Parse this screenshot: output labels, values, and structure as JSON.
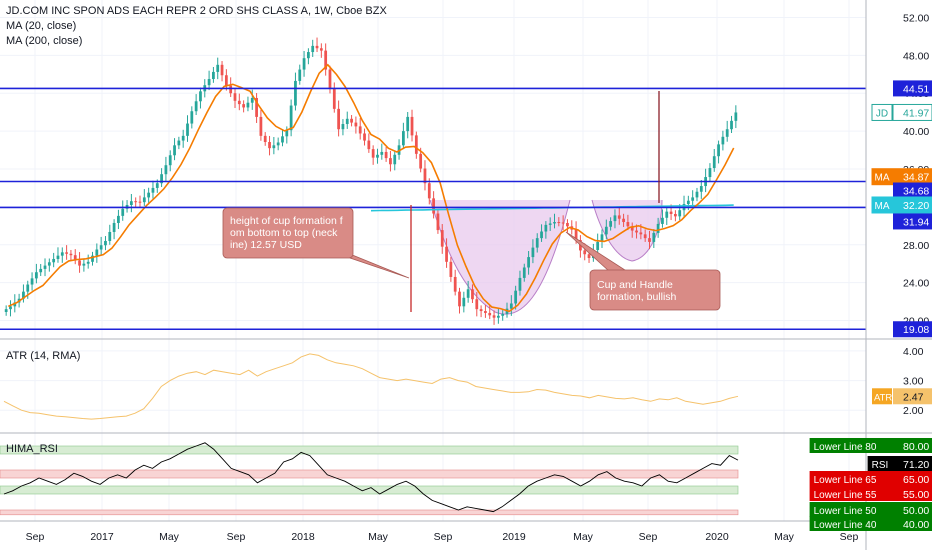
{
  "chart_data": {
    "type": "candlestick",
    "title": "JD.COM INC SPON ADS EACH REPR 2 ORD SHS CLASS A, 1W, Cboe BZX",
    "indicators": [
      "MA (20, close)",
      "MA (200, close)"
    ],
    "x_labels": [
      "Sep",
      "2017",
      "May",
      "Sep",
      "2018",
      "May",
      "Sep",
      "2019",
      "May",
      "Sep",
      "2020",
      "May",
      "Sep"
    ],
    "price_axis": {
      "ticks": [
        "52.00",
        "48.00",
        "44.00",
        "40.00",
        "36.00",
        "32.00",
        "28.00",
        "24.00",
        "20.00"
      ],
      "range": [
        19,
        53
      ]
    },
    "horizontal_levels": [
      44.51,
      34.68,
      31.94,
      19.08
    ],
    "price_badges": [
      {
        "label": "44.51",
        "color": "#1e22d9"
      },
      {
        "label": "JD",
        "value": "41.97",
        "color": "#26a69a",
        "style": "outline"
      },
      {
        "label": "MA",
        "value": "34.87",
        "color": "#f57c00"
      },
      {
        "label": "34.68",
        "color": "#1e22d9"
      },
      {
        "label": "MA",
        "value": "32.20",
        "color": "#26c6da"
      },
      {
        "label": "31.94",
        "color": "#1e22d9"
      },
      {
        "label": "19.08",
        "color": "#1e22d9"
      }
    ],
    "annotations": [
      {
        "text": "height of cup formation from bottom to top (neckline) 12.57 USD"
      },
      {
        "text": "Cup and Handle formation, bullish"
      }
    ],
    "price_closes": [
      21.5,
      22.3,
      23.8,
      25.1,
      25.8,
      26.5,
      27.2,
      26.9,
      25.8,
      26.2,
      27.5,
      28.4,
      30.3,
      31.8,
      32.6,
      32.5,
      33.5,
      34.5,
      36.4,
      38.5,
      39.5,
      42.1,
      44.2,
      45.5,
      47.0,
      44.8,
      43.2,
      42.5,
      43.5,
      39.5,
      38.2,
      38.8,
      40.1,
      45.3,
      47.7,
      49.0,
      48.5,
      44.5,
      40.2,
      41.3,
      40.5,
      39.0,
      37.2,
      37.8,
      36.5,
      38.5,
      41.5,
      37.6,
      34.5,
      31.3,
      27.8,
      24.6,
      21.5,
      23.3,
      21.2,
      20.8,
      20.3,
      20.7,
      21.8,
      24.5,
      26.7,
      28.7,
      30.1,
      30.4,
      30.3,
      29.6,
      27.4,
      26.6,
      28.3,
      29.9,
      31.1,
      30.4,
      29.5,
      29.1,
      28.3,
      30.2,
      31.5,
      31.0,
      32.3,
      33.0,
      34.2,
      36.1,
      38.6,
      40.2,
      41.97
    ],
    "ma20_series_name": "MA (20, close)",
    "ma20_last": 34.87,
    "ma200_series_name": "MA (200, close)",
    "ma200_last": 32.2,
    "atr": {
      "label": "ATR (14, RMA)",
      "ticks": [
        "4.00",
        "3.00",
        "2.00"
      ],
      "range": [
        1.4,
        4.2
      ],
      "last": 2.47,
      "values": [
        2.3,
        2.15,
        2.0,
        1.92,
        1.9,
        1.85,
        1.8,
        1.78,
        1.75,
        1.72,
        1.7,
        1.72,
        1.75,
        1.78,
        1.8,
        1.9,
        2.05,
        2.4,
        2.8,
        3.0,
        3.15,
        3.25,
        3.3,
        3.2,
        3.35,
        3.3,
        3.25,
        3.2,
        3.35,
        3.15,
        3.3,
        3.4,
        3.5,
        3.6,
        3.8,
        3.9,
        3.85,
        3.7,
        3.6,
        3.55,
        3.5,
        3.4,
        3.25,
        3.1,
        3.05,
        3.0,
        3.05,
        3.0,
        2.95,
        2.9,
        3.05,
        3.1,
        3.0,
        2.95,
        2.8,
        2.75,
        2.7,
        2.65,
        2.6,
        2.6,
        2.62,
        2.7,
        2.68,
        2.6,
        2.55,
        2.5,
        2.48,
        2.42,
        2.5,
        2.45,
        2.4,
        2.38,
        2.42,
        2.35,
        2.3,
        2.38,
        2.35,
        2.42,
        2.3,
        2.25,
        2.2,
        2.25,
        2.3,
        2.4,
        2.47
      ]
    },
    "rsi": {
      "label": "HIMA_RSI",
      "last": 71.2,
      "range": [
        35,
        85
      ],
      "values": [
        50,
        52,
        55,
        57,
        60,
        58,
        56,
        59,
        63,
        61,
        58,
        56,
        60,
        62,
        60,
        65,
        68,
        66,
        70,
        72,
        75,
        78,
        80,
        82,
        78,
        72,
        66,
        64,
        62,
        57,
        60,
        63,
        70,
        72,
        76,
        74,
        68,
        62,
        60,
        58,
        55,
        52,
        54,
        50,
        53,
        56,
        58,
        55,
        50,
        46,
        44,
        42,
        40,
        42,
        41,
        40,
        39,
        42,
        46,
        50,
        55,
        58,
        60,
        62,
        61,
        58,
        55,
        58,
        62,
        64,
        60,
        58,
        57,
        55,
        60,
        62,
        58,
        57,
        60,
        63,
        66,
        69,
        68,
        74,
        71.2
      ],
      "badges": [
        {
          "label": "Lower Line 80",
          "value": "80.00",
          "color": "#008000"
        },
        {
          "label": "RSI",
          "value": "71.20",
          "color": "#000000"
        },
        {
          "label": "Lower Line 65",
          "value": "65.00",
          "color": "#e00000"
        },
        {
          "label": "Lower Line 55",
          "value": "55.00",
          "color": "#e00000"
        },
        {
          "label": "Lower Line 50",
          "value": "50.00",
          "color": "#008000"
        },
        {
          "label": "Lower Line 40",
          "value": "40.00",
          "color": "#008000"
        }
      ]
    }
  },
  "colors": {
    "up": "#26a69a",
    "down": "#ef5350",
    "ma20": "#f57c00",
    "ma200": "#26c6da",
    "level": "#1e22d9",
    "measure": "#c62828",
    "atr": "#f5c26b",
    "cup_fill": "#e1bee7",
    "note_bg": "#d98b86"
  }
}
